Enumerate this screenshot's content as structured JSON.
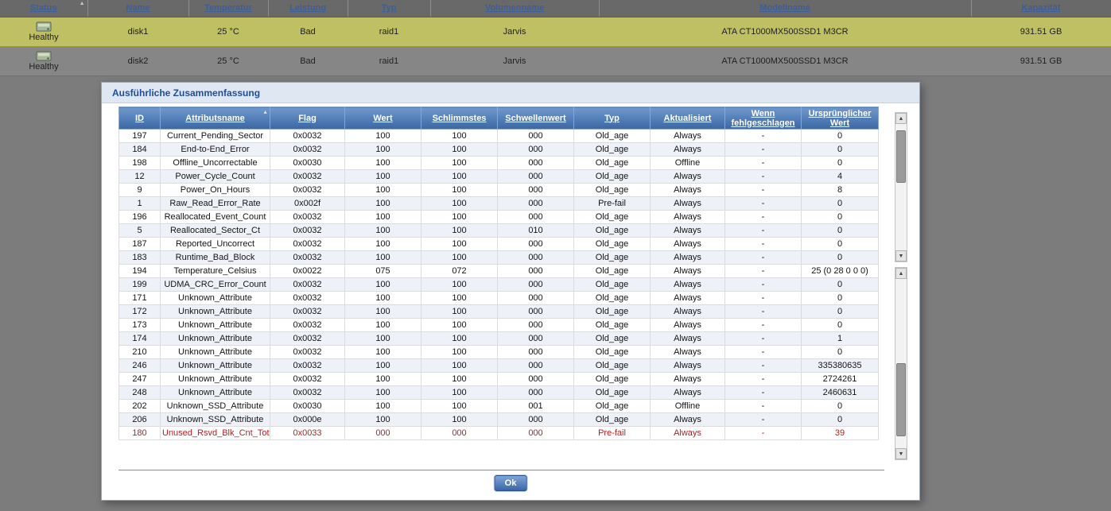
{
  "colors": {
    "page-bg": "#7c7c7c",
    "selected-row": "#bfbf63",
    "header-blue-top": "#6f98cd",
    "header-blue-bottom": "#3b67a4",
    "title-blue": "#1e4d9b",
    "link-blue": "#3d5f98",
    "alert-red": "#b22222"
  },
  "disk_table": {
    "columns": [
      {
        "label": "Status",
        "sort": "asc"
      },
      {
        "label": "Name"
      },
      {
        "label": "Temperatur"
      },
      {
        "label": "Leistung"
      },
      {
        "label": "Typ"
      },
      {
        "label": "Volumenname"
      },
      {
        "label": "Modellname"
      },
      {
        "label": "Kapazität"
      }
    ],
    "rows": [
      {
        "status": "Healthy",
        "name": "disk1",
        "temperatur": "25 °C",
        "leistung": "Bad",
        "typ": "raid1",
        "volumenname": "Jarvis",
        "modellname": "ATA CT1000MX500SSD1 M3CR",
        "kapazitaet": "931.51 GB",
        "selected": true
      },
      {
        "status": "Healthy",
        "name": "disk2",
        "temperatur": "25 °C",
        "leistung": "Bad",
        "typ": "raid1",
        "volumenname": "Jarvis",
        "modellname": "ATA CT1000MX500SSD1 M3CR",
        "kapazitaet": "931.51 GB",
        "selected": false
      }
    ]
  },
  "dialog": {
    "title": "Ausführliche Zusammenfassung",
    "ok_label": "Ok",
    "sorted_column": "Attributsname",
    "table": {
      "columns": [
        "ID",
        "Attributsname",
        "Flag",
        "Wert",
        "Schlimmstes",
        "Schwellenwert",
        "Typ",
        "Aktualisiert",
        "Wenn fehlgeschlagen",
        "Ursprünglicher Wert"
      ],
      "rows": [
        {
          "cells": [
            "197",
            "Current_Pending_Sector",
            "0x0032",
            "100",
            "100",
            "000",
            "Old_age",
            "Always",
            "-",
            "0"
          ]
        },
        {
          "cells": [
            "184",
            "End-to-End_Error",
            "0x0032",
            "100",
            "100",
            "000",
            "Old_age",
            "Always",
            "-",
            "0"
          ]
        },
        {
          "cells": [
            "198",
            "Offline_Uncorrectable",
            "0x0030",
            "100",
            "100",
            "000",
            "Old_age",
            "Offline",
            "-",
            "0"
          ]
        },
        {
          "cells": [
            "12",
            "Power_Cycle_Count",
            "0x0032",
            "100",
            "100",
            "000",
            "Old_age",
            "Always",
            "-",
            "4"
          ]
        },
        {
          "cells": [
            "9",
            "Power_On_Hours",
            "0x0032",
            "100",
            "100",
            "000",
            "Old_age",
            "Always",
            "-",
            "8"
          ]
        },
        {
          "cells": [
            "1",
            "Raw_Read_Error_Rate",
            "0x002f",
            "100",
            "100",
            "000",
            "Pre-fail",
            "Always",
            "-",
            "0"
          ]
        },
        {
          "cells": [
            "196",
            "Reallocated_Event_Count",
            "0x0032",
            "100",
            "100",
            "000",
            "Old_age",
            "Always",
            "-",
            "0"
          ]
        },
        {
          "cells": [
            "5",
            "Reallocated_Sector_Ct",
            "0x0032",
            "100",
            "100",
            "010",
            "Old_age",
            "Always",
            "-",
            "0"
          ]
        },
        {
          "cells": [
            "187",
            "Reported_Uncorrect",
            "0x0032",
            "100",
            "100",
            "000",
            "Old_age",
            "Always",
            "-",
            "0"
          ]
        },
        {
          "cells": [
            "183",
            "Runtime_Bad_Block",
            "0x0032",
            "100",
            "100",
            "000",
            "Old_age",
            "Always",
            "-",
            "0"
          ]
        },
        {
          "cells": [
            "194",
            "Temperature_Celsius",
            "0x0022",
            "075",
            "072",
            "000",
            "Old_age",
            "Always",
            "-",
            "25 (0 28 0 0 0)"
          ]
        },
        {
          "cells": [
            "199",
            "UDMA_CRC_Error_Count",
            "0x0032",
            "100",
            "100",
            "000",
            "Old_age",
            "Always",
            "-",
            "0"
          ]
        },
        {
          "cells": [
            "171",
            "Unknown_Attribute",
            "0x0032",
            "100",
            "100",
            "000",
            "Old_age",
            "Always",
            "-",
            "0"
          ]
        },
        {
          "cells": [
            "172",
            "Unknown_Attribute",
            "0x0032",
            "100",
            "100",
            "000",
            "Old_age",
            "Always",
            "-",
            "0"
          ]
        },
        {
          "cells": [
            "173",
            "Unknown_Attribute",
            "0x0032",
            "100",
            "100",
            "000",
            "Old_age",
            "Always",
            "-",
            "0"
          ]
        },
        {
          "cells": [
            "174",
            "Unknown_Attribute",
            "0x0032",
            "100",
            "100",
            "000",
            "Old_age",
            "Always",
            "-",
            "1"
          ]
        },
        {
          "cells": [
            "210",
            "Unknown_Attribute",
            "0x0032",
            "100",
            "100",
            "000",
            "Old_age",
            "Always",
            "-",
            "0"
          ]
        },
        {
          "cells": [
            "246",
            "Unknown_Attribute",
            "0x0032",
            "100",
            "100",
            "000",
            "Old_age",
            "Always",
            "-",
            "335380635"
          ]
        },
        {
          "cells": [
            "247",
            "Unknown_Attribute",
            "0x0032",
            "100",
            "100",
            "000",
            "Old_age",
            "Always",
            "-",
            "2724261"
          ]
        },
        {
          "cells": [
            "248",
            "Unknown_Attribute",
            "0x0032",
            "100",
            "100",
            "000",
            "Old_age",
            "Always",
            "-",
            "2460631"
          ]
        },
        {
          "cells": [
            "202",
            "Unknown_SSD_Attribute",
            "0x0030",
            "100",
            "100",
            "001",
            "Old_age",
            "Offline",
            "-",
            "0"
          ]
        },
        {
          "cells": [
            "206",
            "Unknown_SSD_Attribute",
            "0x000e",
            "100",
            "100",
            "000",
            "Old_age",
            "Always",
            "-",
            "0"
          ]
        },
        {
          "cells": [
            "180",
            "Unused_Rsvd_Blk_Cnt_Tot",
            "0x0033",
            "000",
            "000",
            "000",
            "Pre-fail",
            "Always",
            "-",
            "39"
          ],
          "alert": true
        }
      ]
    }
  }
}
